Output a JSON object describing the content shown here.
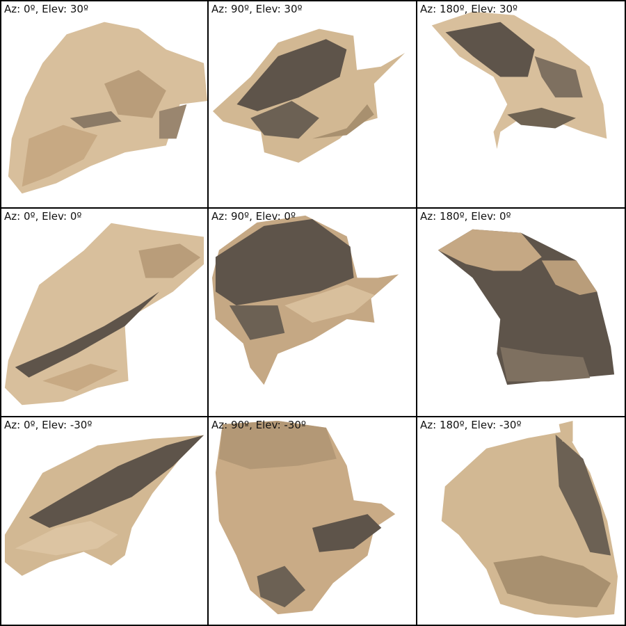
{
  "colors": {
    "surface_light": "#dcc4a2",
    "surface_mid": "#c9ab86",
    "surface_shadow": "#5e544a",
    "border": "#000000",
    "background": "#ffffff"
  },
  "panels": [
    {
      "label": "Az: 0º, Elev: 30º"
    },
    {
      "label": "Az: 90º, Elev: 30º"
    },
    {
      "label": "Az: 180º, Elev: 30º"
    },
    {
      "label": "Az: 0º, Elev: 0º"
    },
    {
      "label": "Az: 90º, Elev: 0º"
    },
    {
      "label": "Az: 180º, Elev: 0º"
    },
    {
      "label": "Az: 0º, Elev: -30º"
    },
    {
      "label": "Az: 90º, Elev: -30º"
    },
    {
      "label": "Az: 180º, Elev: -30º"
    }
  ]
}
